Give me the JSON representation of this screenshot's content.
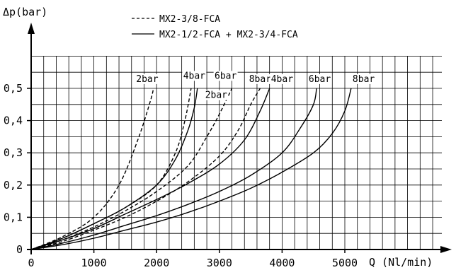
{
  "chart_data": {
    "type": "line",
    "xlabel": "Q (Nl/min)",
    "ylabel": "Δp(bar)",
    "xlim": [
      0,
      6000
    ],
    "ylim": [
      0,
      0.6
    ],
    "x_ticks": [
      0,
      1000,
      2000,
      3000,
      4000,
      5000
    ],
    "x_tick_labels": [
      "0",
      "1000",
      "2000",
      "3000",
      "4000",
      "5000"
    ],
    "y_ticks": [
      0,
      0.1,
      0.2,
      0.3,
      0.4,
      0.5
    ],
    "y_tick_labels": [
      "0",
      "0,1",
      "0,2",
      "0,3",
      "0,4",
      "0,5"
    ],
    "grid": true,
    "legend_position": "top-center",
    "legend": [
      {
        "style": "dashed",
        "label": "MX2-3/8-FCA"
      },
      {
        "style": "solid",
        "label": "MX2-1/2-FCA + MX2-3/4-FCA"
      }
    ],
    "series": [
      {
        "label": "2bar",
        "style": "dashed",
        "points": [
          [
            0,
            0
          ],
          [
            500,
            0.04
          ],
          [
            1000,
            0.1
          ],
          [
            1400,
            0.2
          ],
          [
            1700,
            0.34
          ],
          [
            1900,
            0.46
          ],
          [
            1950,
            0.5
          ]
        ]
      },
      {
        "label": "2bar",
        "style": "solid",
        "points": [
          [
            0,
            0
          ],
          [
            500,
            0.035
          ],
          [
            1000,
            0.08
          ],
          [
            1500,
            0.13
          ],
          [
            2000,
            0.2
          ],
          [
            2300,
            0.28
          ],
          [
            2500,
            0.37
          ],
          [
            2600,
            0.44
          ],
          [
            2650,
            0.5
          ]
        ]
      },
      {
        "label": "4bar",
        "style": "dashed",
        "points": [
          [
            0,
            0
          ],
          [
            500,
            0.035
          ],
          [
            1000,
            0.08
          ],
          [
            1500,
            0.13
          ],
          [
            2000,
            0.2
          ],
          [
            2300,
            0.3
          ],
          [
            2450,
            0.4
          ],
          [
            2550,
            0.5
          ]
        ]
      },
      {
        "label": "4bar",
        "style": "solid",
        "points": [
          [
            0,
            0
          ],
          [
            500,
            0.03
          ],
          [
            1000,
            0.065
          ],
          [
            1500,
            0.11
          ],
          [
            2000,
            0.155
          ],
          [
            2500,
            0.205
          ],
          [
            3000,
            0.265
          ],
          [
            3400,
            0.34
          ],
          [
            3650,
            0.43
          ],
          [
            3800,
            0.5
          ]
        ]
      },
      {
        "label": "6bar",
        "style": "dashed",
        "points": [
          [
            0,
            0
          ],
          [
            500,
            0.03
          ],
          [
            1000,
            0.07
          ],
          [
            1500,
            0.12
          ],
          [
            2000,
            0.18
          ],
          [
            2500,
            0.26
          ],
          [
            2800,
            0.35
          ],
          [
            3000,
            0.42
          ],
          [
            3200,
            0.5
          ]
        ]
      },
      {
        "label": "6bar",
        "style": "solid",
        "points": [
          [
            0,
            0
          ],
          [
            500,
            0.02
          ],
          [
            1000,
            0.045
          ],
          [
            1500,
            0.075
          ],
          [
            2000,
            0.105
          ],
          [
            2500,
            0.14
          ],
          [
            3000,
            0.18
          ],
          [
            3500,
            0.23
          ],
          [
            4000,
            0.3
          ],
          [
            4300,
            0.38
          ],
          [
            4500,
            0.45
          ],
          [
            4550,
            0.5
          ]
        ]
      },
      {
        "label": "8bar",
        "style": "dashed",
        "points": [
          [
            0,
            0
          ],
          [
            500,
            0.025
          ],
          [
            1000,
            0.06
          ],
          [
            1500,
            0.1
          ],
          [
            2000,
            0.15
          ],
          [
            2500,
            0.21
          ],
          [
            3000,
            0.29
          ],
          [
            3300,
            0.37
          ],
          [
            3500,
            0.45
          ],
          [
            3650,
            0.5
          ]
        ]
      },
      {
        "label": "8bar",
        "style": "solid",
        "points": [
          [
            0,
            0
          ],
          [
            500,
            0.015
          ],
          [
            1000,
            0.035
          ],
          [
            1500,
            0.06
          ],
          [
            2000,
            0.085
          ],
          [
            2500,
            0.115
          ],
          [
            3000,
            0.15
          ],
          [
            3500,
            0.19
          ],
          [
            4000,
            0.24
          ],
          [
            4500,
            0.3
          ],
          [
            4800,
            0.36
          ],
          [
            5000,
            0.43
          ],
          [
            5100,
            0.5
          ]
        ]
      }
    ],
    "curve_labels": [
      {
        "text": "2bar",
        "x": 1850,
        "y": 0.52
      },
      {
        "text": "4bar",
        "x": 2600,
        "y": 0.53
      },
      {
        "text": "2bar",
        "x": 2950,
        "y": 0.47
      },
      {
        "text": "6bar",
        "x": 3100,
        "y": 0.53
      },
      {
        "text": "8bar",
        "x": 3650,
        "y": 0.52
      },
      {
        "text": "4bar",
        "x": 4000,
        "y": 0.52
      },
      {
        "text": "6bar",
        "x": 4600,
        "y": 0.52
      },
      {
        "text": "8bar",
        "x": 5300,
        "y": 0.52
      }
    ]
  }
}
